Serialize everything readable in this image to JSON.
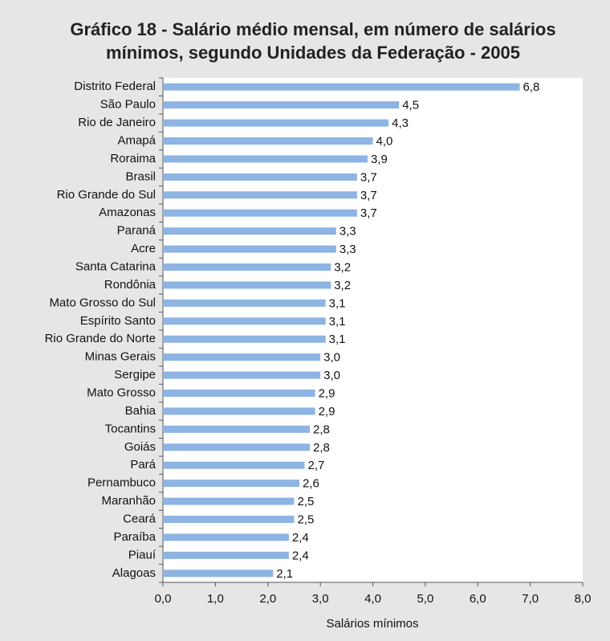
{
  "chart_data": {
    "type": "bar",
    "orientation": "horizontal",
    "title": "Gráfico 18 - Salário médio mensal, em número de salários mínimos, segundo Unidades da Federação - 2005",
    "xlabel": "Salários mínimos",
    "categories": [
      "Distrito Federal",
      "São Paulo",
      "Rio de Janeiro",
      "Amapá",
      "Roraima",
      "Brasil",
      "Rio Grande do Sul",
      "Amazonas",
      "Paraná",
      "Acre",
      "Santa Catarina",
      "Rondônia",
      "Mato Grosso do Sul",
      "Espírito Santo",
      "Rio Grande do Norte",
      "Minas Gerais",
      "Sergipe",
      "Mato Grosso",
      "Bahia",
      "Tocantins",
      "Goiás",
      "Pará",
      "Pernambuco",
      "Maranhão",
      "Ceará",
      "Paraíba",
      "Piauí",
      "Alagoas"
    ],
    "values": [
      6.8,
      4.5,
      4.3,
      4.0,
      3.9,
      3.7,
      3.7,
      3.7,
      3.3,
      3.3,
      3.2,
      3.2,
      3.1,
      3.1,
      3.1,
      3.0,
      3.0,
      2.9,
      2.9,
      2.8,
      2.8,
      2.7,
      2.6,
      2.5,
      2.5,
      2.4,
      2.4,
      2.1
    ],
    "value_labels": [
      "6,8",
      "4,5",
      "4,3",
      "4,0",
      "3,9",
      "3,7",
      "3,7",
      "3,7",
      "3,3",
      "3,3",
      "3,2",
      "3,2",
      "3,1",
      "3,1",
      "3,1",
      "3,0",
      "3,0",
      "2,9",
      "2,9",
      "2,8",
      "2,8",
      "2,7",
      "2,6",
      "2,5",
      "2,5",
      "2,4",
      "2,4",
      "2,1"
    ],
    "color": "#8db4e2",
    "xlim": [
      0,
      8
    ],
    "xticks": [
      {
        "value": 0,
        "label": "0,0"
      },
      {
        "value": 1,
        "label": "1,0"
      },
      {
        "value": 2,
        "label": "2,0"
      },
      {
        "value": 3,
        "label": "3,0"
      },
      {
        "value": 4,
        "label": "4,0"
      },
      {
        "value": 5,
        "label": "5,0"
      },
      {
        "value": 6,
        "label": "6,0"
      },
      {
        "value": 7,
        "label": "7,0"
      },
      {
        "value": 8,
        "label": "8,0"
      }
    ],
    "grid": false
  }
}
